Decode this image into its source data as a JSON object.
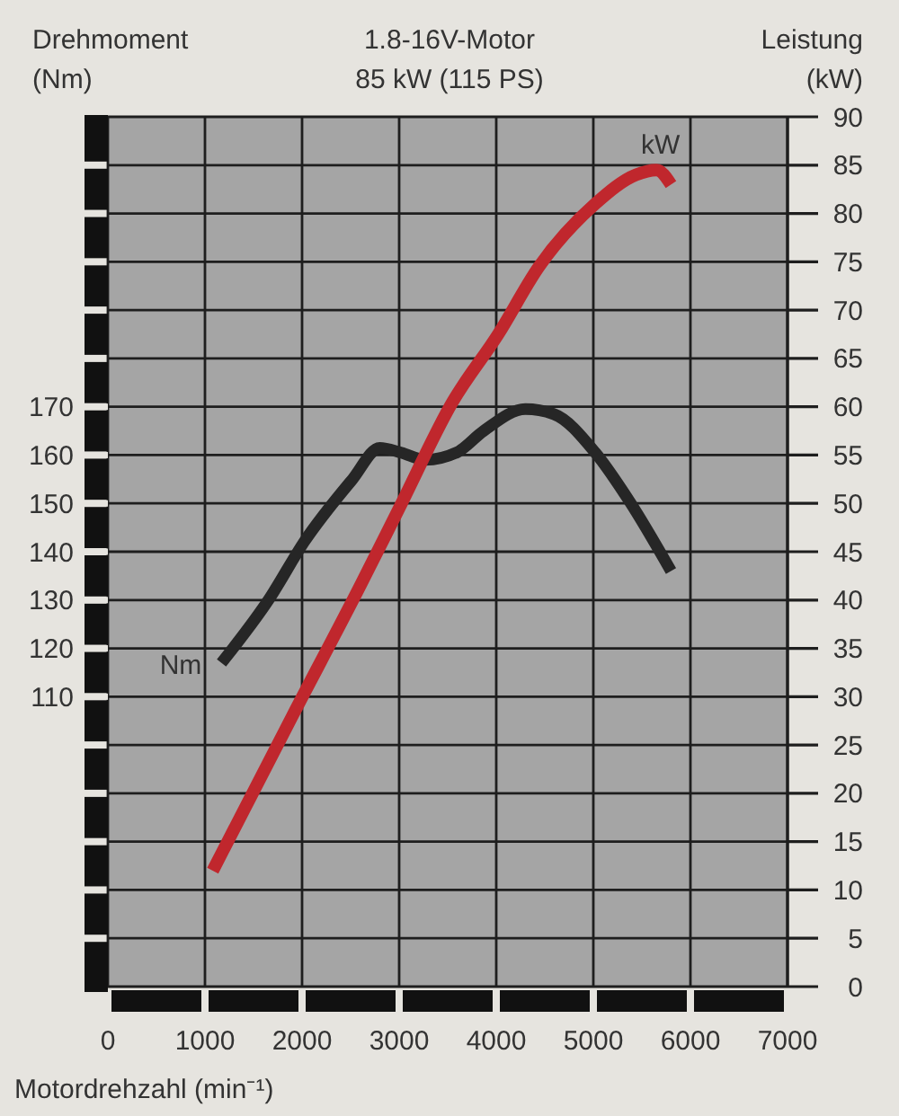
{
  "chart_data": {
    "type": "line",
    "title": "1.8-16V-Motor",
    "subtitle": "85 kW (115 PS)",
    "xlabel": "Motordrehzahl (min⁻¹)",
    "ylabel": "Drehmoment (Nm)",
    "y2label": "Leistung (kW)",
    "xlim": [
      0,
      7000
    ],
    "xticks": [
      0,
      1000,
      2000,
      3000,
      4000,
      5000,
      6000,
      7000
    ],
    "ylim": [
      50,
      230
    ],
    "yticks": [
      110,
      120,
      130,
      140,
      150,
      160,
      170
    ],
    "y2lim": [
      0,
      90
    ],
    "y2ticks": [
      0,
      5,
      10,
      15,
      20,
      25,
      30,
      35,
      40,
      45,
      50,
      55,
      60,
      65,
      70,
      75,
      80,
      85,
      90
    ],
    "grid": true,
    "series": [
      {
        "name": "Nm",
        "color": "#262626",
        "x": [
          1170,
          1670,
          2020,
          2520,
          2800,
          3020,
          3270,
          3590,
          3870,
          4300,
          4590,
          5020,
          5370,
          5800
        ],
        "values": [
          117,
          130.5,
          142,
          155,
          161.5,
          160.5,
          159,
          160.5,
          165,
          169.5,
          168.5,
          160.5,
          150.5,
          136
        ]
      },
      {
        "name": "kW",
        "color": "#c0272d",
        "axis": "y2",
        "x": [
          1080,
          1900,
          2600,
          3000,
          3550,
          4020,
          4440,
          5020,
          5440,
          5650,
          5800
        ],
        "values": [
          12,
          28,
          41.5,
          49.5,
          60.5,
          67.5,
          74.5,
          81,
          84,
          84.5,
          83
        ]
      }
    ]
  }
}
